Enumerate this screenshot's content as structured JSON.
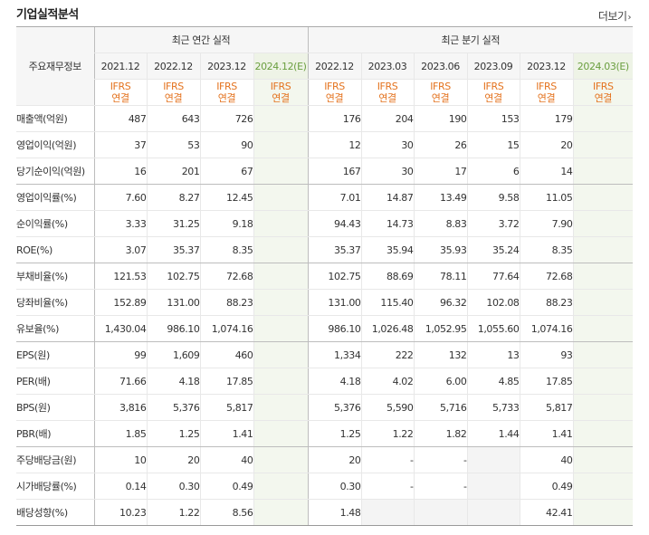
{
  "title": "기업실적분석",
  "more": "더보기",
  "row_header": "주요재무정보",
  "groups": {
    "annual": "최근 연간 실적",
    "quarterly": "최근 분기 실적"
  },
  "periods": [
    "2021.12",
    "2022.12",
    "2023.12",
    "2024.12(E)",
    "2022.12",
    "2023.03",
    "2023.06",
    "2023.09",
    "2023.12",
    "2024.03(E)"
  ],
  "basis_top": "IFRS",
  "basis_bottom": "연결",
  "rows": [
    {
      "label": "매출액(억원)",
      "values": [
        "487",
        "643",
        "726",
        "",
        "176",
        "204",
        "190",
        "153",
        "179",
        ""
      ]
    },
    {
      "label": "영업이익(억원)",
      "values": [
        "37",
        "53",
        "90",
        "",
        "12",
        "30",
        "26",
        "15",
        "20",
        ""
      ]
    },
    {
      "label": "당기순이익(억원)",
      "values": [
        "16",
        "201",
        "67",
        "",
        "167",
        "30",
        "17",
        "6",
        "14",
        ""
      ]
    },
    {
      "label": "영업이익률(%)",
      "values": [
        "7.60",
        "8.27",
        "12.45",
        "",
        "7.01",
        "14.87",
        "13.49",
        "9.58",
        "11.05",
        ""
      ]
    },
    {
      "label": "순이익률(%)",
      "values": [
        "3.33",
        "31.25",
        "9.18",
        "",
        "94.43",
        "14.73",
        "8.83",
        "3.72",
        "7.90",
        ""
      ]
    },
    {
      "label": "ROE(%)",
      "values": [
        "3.07",
        "35.37",
        "8.35",
        "",
        "35.37",
        "35.94",
        "35.93",
        "35.24",
        "8.35",
        ""
      ]
    },
    {
      "label": "부채비율(%)",
      "values": [
        "121.53",
        "102.75",
        "72.68",
        "",
        "102.75",
        "88.69",
        "78.11",
        "77.64",
        "72.68",
        ""
      ]
    },
    {
      "label": "당좌비율(%)",
      "values": [
        "152.89",
        "131.00",
        "88.23",
        "",
        "131.00",
        "115.40",
        "96.32",
        "102.08",
        "88.23",
        ""
      ]
    },
    {
      "label": "유보율(%)",
      "values": [
        "1,430.04",
        "986.10",
        "1,074.16",
        "",
        "986.10",
        "1,026.48",
        "1,052.95",
        "1,055.60",
        "1,074.16",
        ""
      ]
    },
    {
      "label": "EPS(원)",
      "values": [
        "99",
        "1,609",
        "460",
        "",
        "1,334",
        "222",
        "132",
        "13",
        "93",
        ""
      ]
    },
    {
      "label": "PER(배)",
      "values": [
        "71.66",
        "4.18",
        "17.85",
        "",
        "4.18",
        "4.02",
        "6.00",
        "4.85",
        "17.85",
        ""
      ]
    },
    {
      "label": "BPS(원)",
      "values": [
        "3,816",
        "5,376",
        "5,817",
        "",
        "5,376",
        "5,590",
        "5,716",
        "5,733",
        "5,817",
        ""
      ]
    },
    {
      "label": "PBR(배)",
      "values": [
        "1.85",
        "1.25",
        "1.41",
        "",
        "1.25",
        "1.22",
        "1.82",
        "1.44",
        "1.41",
        ""
      ]
    },
    {
      "label": "주당배당금(원)",
      "values": [
        "10",
        "20",
        "40",
        "",
        "20",
        "-",
        "-",
        "",
        "40",
        ""
      ]
    },
    {
      "label": "시가배당률(%)",
      "values": [
        "0.14",
        "0.30",
        "0.49",
        "",
        "0.30",
        "-",
        "-",
        "",
        "0.49",
        ""
      ]
    },
    {
      "label": "배당성향(%)",
      "values": [
        "10.23",
        "1.22",
        "8.56",
        "",
        "1.48",
        "",
        "",
        "",
        "42.41",
        ""
      ]
    }
  ]
}
